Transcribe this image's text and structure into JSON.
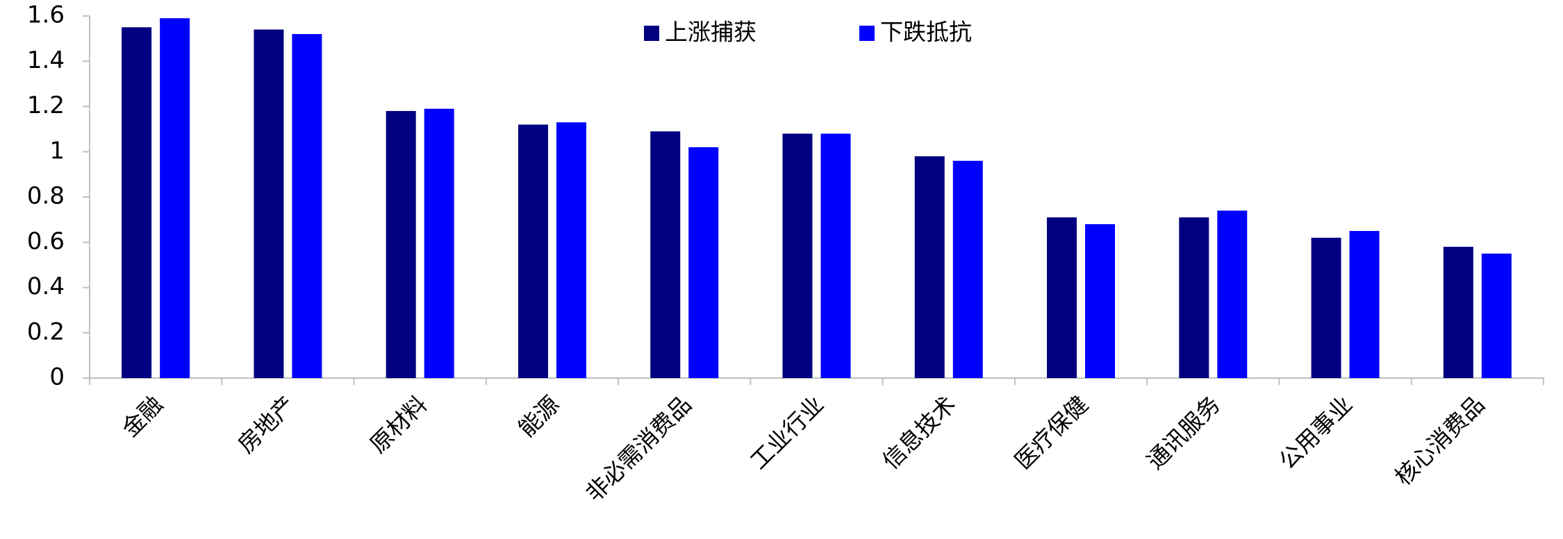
{
  "chart_data": {
    "type": "bar",
    "categories": [
      "金融",
      "房地产",
      "原材料",
      "能源",
      "非必需消费品",
      "工业行业",
      "信息技术",
      "医疗保健",
      "通讯服务",
      "公用事业",
      "核心消费品"
    ],
    "series": [
      {
        "name": "上涨捕获",
        "color": "#000080",
        "values": [
          1.55,
          1.54,
          1.18,
          1.12,
          1.09,
          1.08,
          0.98,
          0.71,
          0.71,
          0.62,
          0.58
        ]
      },
      {
        "name": "下跌抵抗",
        "color": "#0000ff",
        "values": [
          1.59,
          1.52,
          1.19,
          1.13,
          1.02,
          1.08,
          0.96,
          0.68,
          0.74,
          0.65,
          0.55
        ]
      }
    ],
    "ylim": [
      0,
      1.6
    ],
    "yticks": [
      0,
      0.2,
      0.4,
      0.6,
      0.8,
      1,
      1.2,
      1.4,
      1.6
    ],
    "grid": false,
    "legend": "top"
  }
}
